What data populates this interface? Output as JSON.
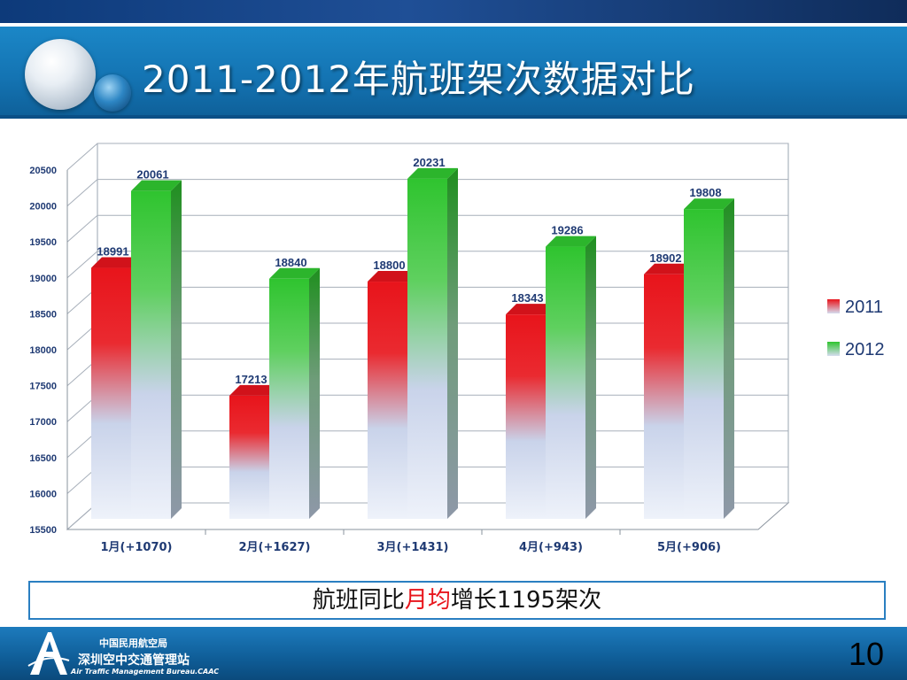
{
  "slide": {
    "title": "2011-2012年航班架次数据对比",
    "page_number": "10",
    "summary": {
      "before": "航班同比",
      "highlight": "月均",
      "after": "增长1195架次"
    },
    "footer": {
      "org_small": "中国民用航空局",
      "org_name": "深圳空中交通管理站",
      "org_en": "Air Traffic Management Bureau.CAAC"
    }
  },
  "colors": {
    "series_2011": "#e8141b",
    "series_2012": "#2fc42f",
    "label_text": "#1f3a73",
    "title_band": "#1677b5"
  },
  "chart_data": {
    "type": "bar",
    "categories": [
      "1月(+1070)",
      "2月(+1627)",
      "3月(+1431)",
      "4月(+943)",
      "5月(+906)"
    ],
    "series": [
      {
        "name": "2011",
        "values": [
          18991,
          17213,
          18800,
          18343,
          18902
        ]
      },
      {
        "name": "2012",
        "values": [
          20061,
          18840,
          20231,
          19286,
          19808
        ]
      }
    ],
    "ylim": [
      15500,
      20500
    ],
    "yticks": [
      15500,
      16000,
      16500,
      17000,
      17500,
      18000,
      18500,
      19000,
      19500,
      20000,
      20500
    ],
    "legend": "right",
    "grid": true,
    "title": "",
    "xlabel": "",
    "ylabel": ""
  }
}
